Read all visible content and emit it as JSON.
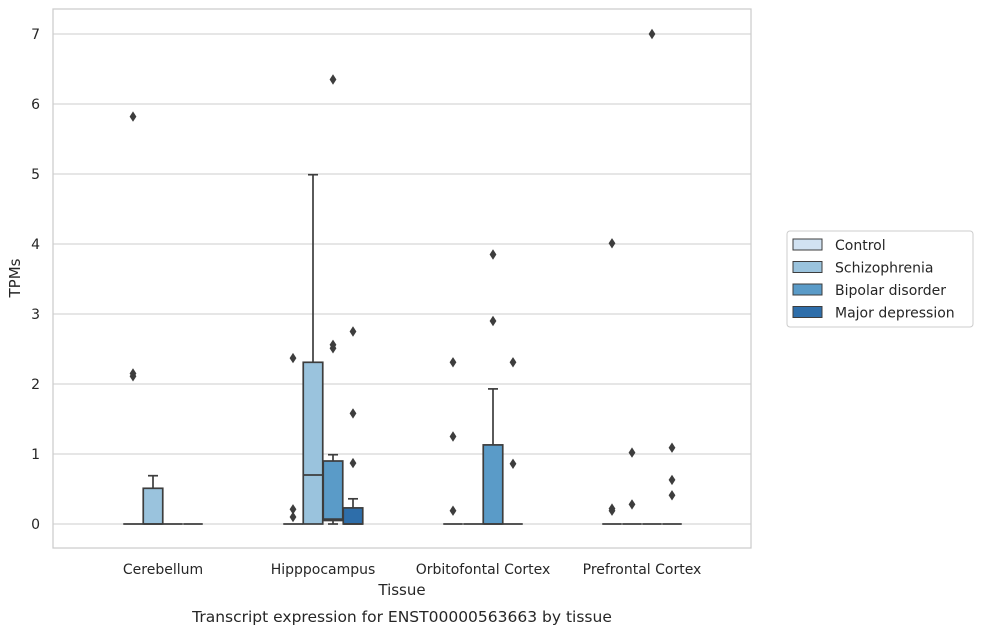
{
  "caption": "Transcript expression for ENST00000563663 by tissue",
  "chart_data": {
    "type": "box",
    "xlabel": "Tissue",
    "ylabel": "TPMs",
    "categories": [
      "Cerebellum",
      "Hipppocampus",
      "Orbitofontal Cortex",
      "Prefrontal Cortex"
    ],
    "ylim": [
      -0.33,
      7.35
    ],
    "yticks": [
      0,
      1,
      2,
      3,
      4,
      5,
      6,
      7
    ],
    "grid": "horizontal",
    "legend_position": "right",
    "series": [
      {
        "name": "Control",
        "color": "#d1e2f2",
        "boxes": [
          {
            "q1": 0,
            "median": 0,
            "q3": 0,
            "whisker_low": 0,
            "whisker_high": 0,
            "outliers": [
              5.82,
              2.15,
              2.11
            ]
          },
          {
            "q1": 0,
            "median": 0,
            "q3": 0,
            "whisker_low": 0,
            "whisker_high": 0,
            "outliers": [
              0.21,
              0.1,
              2.37
            ]
          },
          {
            "q1": 0,
            "median": 0,
            "q3": 0,
            "whisker_low": 0,
            "whisker_high": 0,
            "outliers": [
              2.31,
              1.25,
              0.19
            ]
          },
          {
            "q1": 0,
            "median": 0,
            "q3": 0,
            "whisker_low": 0,
            "whisker_high": 0,
            "outliers": [
              4.01,
              0.22,
              0.19
            ]
          }
        ]
      },
      {
        "name": "Schizophrenia",
        "color": "#9ac3dd",
        "boxes": [
          {
            "q1": 0,
            "median": 0,
            "q3": 0.51,
            "whisker_low": 0,
            "whisker_high": 0.69,
            "outliers": []
          },
          {
            "q1": 0,
            "median": 0.7,
            "q3": 2.31,
            "whisker_low": 0,
            "whisker_high": 4.99,
            "outliers": []
          },
          {
            "q1": 0,
            "median": 0,
            "q3": 0,
            "whisker_low": 0,
            "whisker_high": 0,
            "outliers": []
          },
          {
            "q1": 0,
            "median": 0,
            "q3": 0,
            "whisker_low": 0,
            "whisker_high": 0,
            "outliers": [
              0.28,
              1.02
            ]
          }
        ]
      },
      {
        "name": "Bipolar disorder",
        "color": "#5a9bc8",
        "boxes": [
          {
            "q1": 0,
            "median": 0,
            "q3": 0,
            "whisker_low": 0,
            "whisker_high": 0,
            "outliers": []
          },
          {
            "q1": 0.05,
            "median": 0.07,
            "q3": 0.9,
            "whisker_low": 0,
            "whisker_high": 0.99,
            "outliers": [
              6.35,
              2.56,
              2.51
            ]
          },
          {
            "q1": 0,
            "median": 0,
            "q3": 1.13,
            "whisker_low": 0,
            "whisker_high": 1.93,
            "outliers": [
              3.85,
              2.9
            ]
          },
          {
            "q1": 0,
            "median": 0,
            "q3": 0,
            "whisker_low": 0,
            "whisker_high": 0,
            "outliers": [
              7.0
            ]
          }
        ]
      },
      {
        "name": "Major depression",
        "color": "#2e6eaa",
        "boxes": [
          {
            "q1": 0,
            "median": 0,
            "q3": 0,
            "whisker_low": 0,
            "whisker_high": 0,
            "outliers": []
          },
          {
            "q1": 0,
            "median": 0,
            "q3": 0.23,
            "whisker_low": 0,
            "whisker_high": 0.36,
            "outliers": [
              2.75,
              1.58,
              0.87
            ]
          },
          {
            "q1": 0,
            "median": 0,
            "q3": 0,
            "whisker_low": 0,
            "whisker_high": 0,
            "outliers": [
              2.31,
              0.86
            ]
          },
          {
            "q1": 0,
            "median": 0,
            "q3": 0,
            "whisker_low": 0,
            "whisker_high": 0,
            "outliers": [
              1.09,
              0.63,
              0.41
            ]
          }
        ]
      }
    ]
  }
}
